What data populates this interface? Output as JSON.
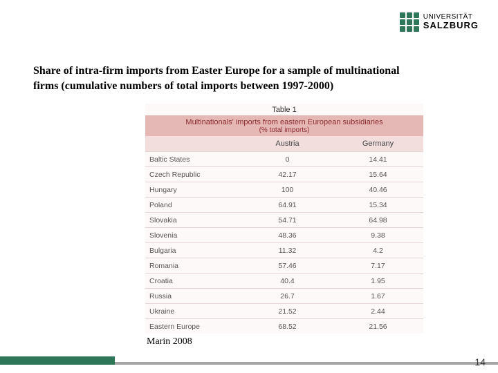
{
  "logo": {
    "line1": "UNIVERSITÄT",
    "line2": "SALZBURG"
  },
  "title": "Share of intra-firm imports from Easter Europe for a sample of multinational firms (cumulative numbers of total imports between 1997-2000)",
  "table": {
    "label": "Table 1",
    "header_line1": "Multinationals' imports from eastern European subsidiaries",
    "header_line2": "(% total imports)",
    "columns": [
      "",
      "Austria",
      "Germany"
    ],
    "rows": [
      [
        "Baltic States",
        "0",
        "14.41"
      ],
      [
        "Czech Republic",
        "42.17",
        "15.64"
      ],
      [
        "Hungary",
        "100",
        "40.46"
      ],
      [
        "Poland",
        "64.91",
        "15.34"
      ],
      [
        "Slovakia",
        "54.71",
        "64.98"
      ],
      [
        "Slovenia",
        "48.36",
        "9.38"
      ],
      [
        "Bulgaria",
        "11.32",
        "4.2"
      ],
      [
        "Romania",
        "57.46",
        "7.17"
      ],
      [
        "Croatia",
        "40.4",
        "1.95"
      ],
      [
        "Russia",
        "26.7",
        "1.67"
      ],
      [
        "Ukraine",
        "21.52",
        "2.44"
      ],
      [
        "Eastern Europe",
        "68.52",
        "21.56"
      ]
    ],
    "header_bg": "#e6b8b5",
    "header_text_color": "#8a2c30",
    "colhead_bg": "#f1dedd",
    "row_border": "#e3d5d4",
    "body_bg": "#fdf9f8"
  },
  "source": "Marin 2008",
  "page_number": "14",
  "colors": {
    "accent_green": "#2e7658",
    "footer_gray": "#a6a6a6"
  }
}
